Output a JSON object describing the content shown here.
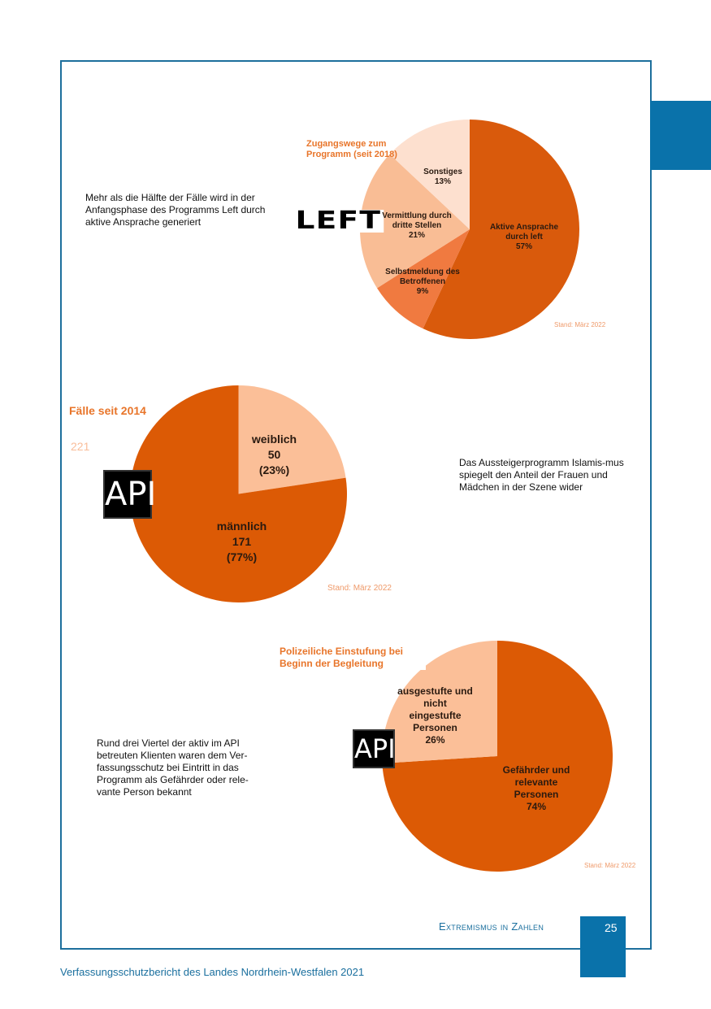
{
  "colors": {
    "frame": "#1d6f9c",
    "accent": "#0a72aa",
    "dark": "#d95a0c",
    "mid": "#f07a40",
    "light": "#f9bd95",
    "lightest": "#fde0cf"
  },
  "texts": {
    "p1": "Mehr als die Hälfte der Fälle wird in der Anfangsphase des Programms Left durch aktive Ansprache generiert",
    "p2": "Das Aussteigerprogramm Islamis-mus spiegelt den Anteil der Frauen und Mädchen in der Szene wider",
    "p3": "Rund drei Viertel der aktiv im API betreuten Klienten waren dem Ver-fassungsschutz bei Eintritt in das Programm als Gefährder oder rele-vante Person bekannt"
  },
  "logos": {
    "left": "LEFT",
    "api": "API"
  },
  "footer": {
    "section": "Extremismus in Zahlen",
    "page": "25",
    "publication": "Verfassungsschutzbericht des Landes Nordrhein-Westfalen 2021"
  },
  "chart_data": [
    {
      "type": "pie",
      "title": "Zugangswege zum Programm (seit 2018)",
      "note": "Stand: März 2022",
      "slices": [
        {
          "label": "Aktive Ansprache durch left",
          "value": 57,
          "text": "57%",
          "color": "#d95a0c"
        },
        {
          "label": "Selbstmeldung des Betroffenen",
          "value": 9,
          "text": "9%",
          "color": "#f07a40"
        },
        {
          "label": "Vermittlung durch dritte Stellen",
          "value": 21,
          "text": "21%",
          "color": "#f9bd95"
        },
        {
          "label": "Sonstiges",
          "value": 13,
          "text": "13%",
          "color": "#fde0cf"
        }
      ]
    },
    {
      "type": "pie",
      "title": "Fälle seit 2014",
      "total": "221",
      "note": "Stand: März 2022",
      "slices": [
        {
          "label": "weiblich",
          "value": 50,
          "text": "50",
          "pct": "(23%)",
          "color": "#fbbf98"
        },
        {
          "label": "männlich",
          "value": 171,
          "text": "171",
          "pct": "(77%)",
          "color": "#dc5a05"
        }
      ]
    },
    {
      "type": "pie",
      "title": "Polizeiliche Einstufung bei Beginn der Begleitung",
      "note": "Stand: März 2022",
      "slices": [
        {
          "label": "Gefährder und relevante Personen",
          "value": 74,
          "text": "74%",
          "color": "#dc5a05"
        },
        {
          "label": "ausgestufte und nicht eingestufte Personen",
          "value": 26,
          "text": "26%",
          "color": "#fbbf98"
        }
      ]
    }
  ]
}
